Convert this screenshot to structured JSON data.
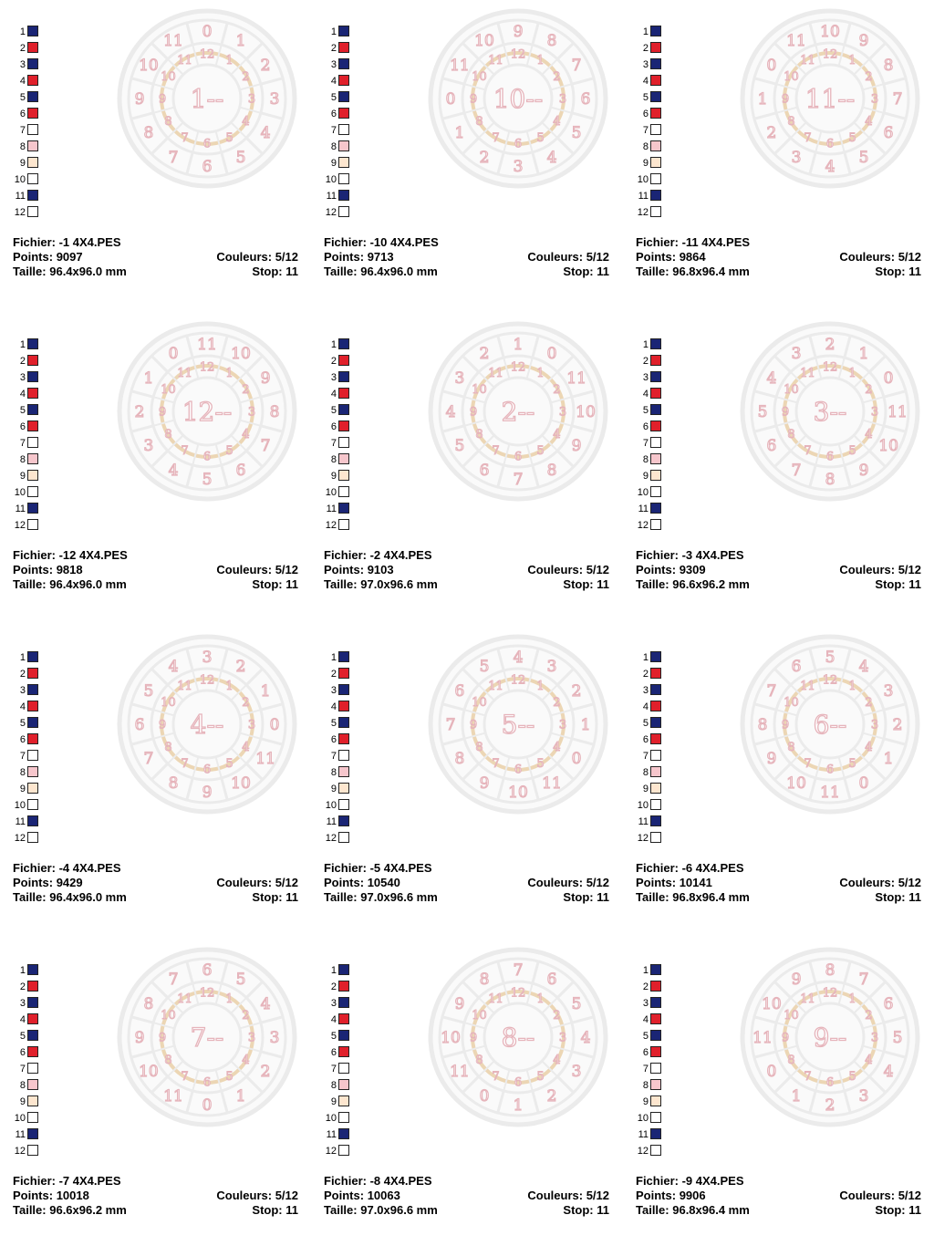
{
  "labels": {
    "file": "Fichier:",
    "points": "Points:",
    "size": "Taille:",
    "colors": "Couleurs:",
    "stop": "Stop:"
  },
  "palette": {
    "numbers": [
      "1",
      "2",
      "3",
      "4",
      "5",
      "6",
      "7",
      "8",
      "9",
      "10",
      "11",
      "12"
    ],
    "colors": [
      "#1a2575",
      "#e0202b",
      "#1a2575",
      "#e0202b",
      "#1a2575",
      "#e0202b",
      "#ffffff",
      "#f6c6cc",
      "#fde6cf",
      "#ffffff",
      "#1a2575",
      "#ffffff"
    ]
  },
  "design_colors": {
    "ring": "#ebebeb",
    "ring_edge": "#d6d6d6",
    "gold_ring": "#ecd6b4",
    "digit": "#e6b4bb"
  },
  "inner_numbers": [
    "12",
    "1",
    "2",
    "3",
    "4",
    "5",
    "6",
    "7",
    "8",
    "9",
    "10",
    "11"
  ],
  "designs": [
    {
      "center": "1--",
      "outer": [
        "0",
        "1",
        "2",
        "3",
        "4",
        "5",
        "6",
        "7",
        "8",
        "9",
        "10",
        "11"
      ],
      "file": "-1 4X4.PES",
      "points": "9097",
      "size": "96.4x96.0 mm",
      "colors": "5/12",
      "stop": "11"
    },
    {
      "center": "10--",
      "outer": [
        "9",
        "8",
        "7",
        "6",
        "5",
        "4",
        "3",
        "2",
        "1",
        "0",
        "11",
        "10"
      ],
      "file": "-10 4X4.PES",
      "points": "9713",
      "size": "96.4x96.0 mm",
      "colors": "5/12",
      "stop": "11"
    },
    {
      "center": "11--",
      "outer": [
        "10",
        "9",
        "8",
        "7",
        "6",
        "5",
        "4",
        "3",
        "2",
        "1",
        "0",
        "11"
      ],
      "file": "-11 4X4.PES",
      "points": "9864",
      "size": "96.8x96.4 mm",
      "colors": "5/12",
      "stop": "11"
    },
    {
      "center": "12--",
      "outer": [
        "11",
        "10",
        "9",
        "8",
        "7",
        "6",
        "5",
        "4",
        "3",
        "2",
        "1",
        "0"
      ],
      "file": "-12 4X4.PES",
      "points": "9818",
      "size": "96.4x96.0 mm",
      "colors": "5/12",
      "stop": "11"
    },
    {
      "center": "2--",
      "outer": [
        "1",
        "0",
        "11",
        "10",
        "9",
        "8",
        "7",
        "6",
        "5",
        "4",
        "3",
        "2"
      ],
      "file": "-2 4X4.PES",
      "points": "9103",
      "size": "97.0x96.6 mm",
      "colors": "5/12",
      "stop": "11"
    },
    {
      "center": "3--",
      "outer": [
        "2",
        "1",
        "0",
        "11",
        "10",
        "9",
        "8",
        "7",
        "6",
        "5",
        "4",
        "3"
      ],
      "file": "-3 4X4.PES",
      "points": "9309",
      "size": "96.6x96.2 mm",
      "colors": "5/12",
      "stop": "11"
    },
    {
      "center": "4--",
      "outer": [
        "3",
        "2",
        "1",
        "0",
        "11",
        "10",
        "9",
        "8",
        "7",
        "6",
        "5",
        "4"
      ],
      "file": "-4 4X4.PES",
      "points": "9429",
      "size": "96.4x96.0 mm",
      "colors": "5/12",
      "stop": "11"
    },
    {
      "center": "5--",
      "outer": [
        "4",
        "3",
        "2",
        "1",
        "0",
        "11",
        "10",
        "9",
        "8",
        "7",
        "6",
        "5"
      ],
      "file": "-5 4X4.PES",
      "points": "10540",
      "size": "97.0x96.6 mm",
      "colors": "5/12",
      "stop": "11"
    },
    {
      "center": "6--",
      "outer": [
        "5",
        "4",
        "3",
        "2",
        "1",
        "0",
        "11",
        "10",
        "9",
        "8",
        "7",
        "6"
      ],
      "file": "-6 4X4.PES",
      "points": "10141",
      "size": "96.8x96.4 mm",
      "colors": "5/12",
      "stop": "11"
    },
    {
      "center": "7--",
      "outer": [
        "6",
        "5",
        "4",
        "3",
        "2",
        "1",
        "0",
        "11",
        "10",
        "9",
        "8",
        "7"
      ],
      "file": "-7 4X4.PES",
      "points": "10018",
      "size": "96.6x96.2 mm",
      "colors": "5/12",
      "stop": "11"
    },
    {
      "center": "8--",
      "outer": [
        "7",
        "6",
        "5",
        "4",
        "3",
        "2",
        "1",
        "0",
        "11",
        "10",
        "9",
        "8"
      ],
      "file": "-8 4X4.PES",
      "points": "10063",
      "size": "97.0x96.6 mm",
      "colors": "5/12",
      "stop": "11"
    },
    {
      "center": "9--",
      "outer": [
        "8",
        "7",
        "6",
        "5",
        "4",
        "3",
        "2",
        "1",
        "0",
        "11",
        "10",
        "9"
      ],
      "file": "-9 4X4.PES",
      "points": "9906",
      "size": "96.8x96.4 mm",
      "colors": "5/12",
      "stop": "11"
    }
  ]
}
